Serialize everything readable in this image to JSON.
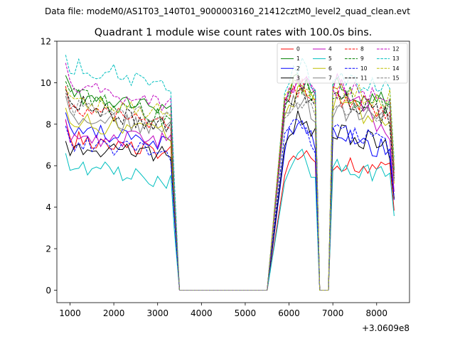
{
  "chart_data": {
    "type": "line",
    "suptitle": "Data file: modeM0/AS1T03_140T01_9000003160_21412cztM0_level2_quad_clean.evt",
    "title": "Quadrant 1 module wise count rates with 100.0s bins.",
    "xlabel": "",
    "ylabel": "",
    "x_offset_label": "+3.0609e8",
    "xlim": [
      700,
      8750
    ],
    "ylim": [
      -0.6,
      12.0
    ],
    "xticks": [
      1000,
      2000,
      3000,
      4000,
      5000,
      6000,
      7000,
      8000
    ],
    "yticks": [
      0,
      2,
      4,
      6,
      8,
      10,
      12
    ],
    "legend": {
      "placement": "top-right",
      "ncol": 4
    },
    "segments": [
      {
        "start": 900,
        "end": 3300,
        "n": 25
      },
      {
        "start": 5900,
        "end": 6600,
        "n": 8
      },
      {
        "start": 7000,
        "end": 8300,
        "n": 14
      }
    ],
    "series": [
      {
        "name": "0",
        "color": "#ff0000",
        "dash": "solid",
        "levels": [
          7.3,
          6.7,
          6.3,
          5.9
        ]
      },
      {
        "name": "1",
        "color": "#008000",
        "dash": "solid",
        "levels": [
          9.5,
          8.9,
          9.8,
          8.9
        ]
      },
      {
        "name": "2",
        "color": "#0000ff",
        "dash": "solid",
        "levels": [
          7.8,
          6.9,
          7.5,
          6.7
        ]
      },
      {
        "name": "3",
        "color": "#000000",
        "dash": "solid",
        "levels": [
          6.9,
          6.6,
          7.9,
          6.8
        ]
      },
      {
        "name": "4",
        "color": "#bf00bf",
        "dash": "solid",
        "levels": [
          7.4,
          7.2,
          10.1,
          7.3
        ]
      },
      {
        "name": "5",
        "color": "#00bfbf",
        "dash": "solid",
        "levels": [
          6.0,
          5.3,
          6.1,
          5.5
        ]
      },
      {
        "name": "6",
        "color": "#bfbf00",
        "dash": "solid",
        "levels": [
          8.2,
          7.5,
          9.2,
          7.9
        ]
      },
      {
        "name": "7",
        "color": "#808080",
        "dash": "solid",
        "levels": [
          8.5,
          7.8,
          8.8,
          8.1
        ]
      },
      {
        "name": "8",
        "color": "#ff0000",
        "dash": "dashed",
        "levels": [
          8.9,
          8.0,
          9.5,
          8.6
        ]
      },
      {
        "name": "9",
        "color": "#008000",
        "dash": "dashed",
        "levels": [
          9.6,
          8.2,
          9.6,
          8.9
        ]
      },
      {
        "name": "10",
        "color": "#0000ff",
        "dash": "dashed",
        "levels": [
          7.2,
          6.5,
          7.7,
          6.9
        ]
      },
      {
        "name": "11",
        "color": "#000000",
        "dash": "dashed",
        "levels": [
          9.2,
          7.8,
          9.3,
          8.3
        ]
      },
      {
        "name": "12",
        "color": "#bf00bf",
        "dash": "dashed",
        "levels": [
          10.0,
          8.8,
          9.8,
          9.2
        ]
      },
      {
        "name": "13",
        "color": "#00bfbf",
        "dash": "dashed",
        "levels": [
          10.9,
          9.9,
          10.4,
          9.7
        ]
      },
      {
        "name": "14",
        "color": "#bfbf00",
        "dash": "dashed",
        "levels": [
          9.2,
          8.5,
          9.7,
          9.2
        ]
      },
      {
        "name": "15",
        "color": "#808080",
        "dash": "dashed",
        "levels": [
          8.8,
          8.3,
          9.0,
          8.5
        ]
      }
    ]
  }
}
